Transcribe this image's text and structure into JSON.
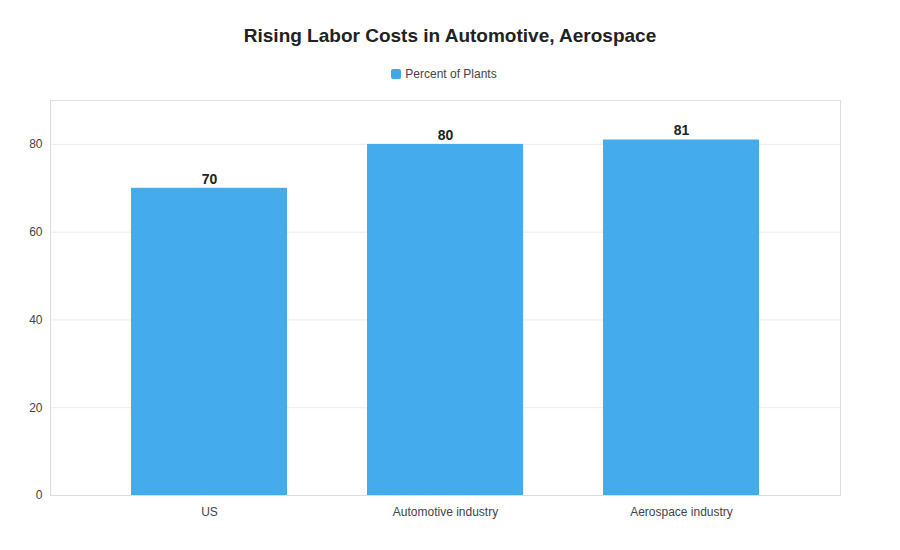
{
  "chart_data": {
    "type": "bar",
    "title": "Rising Labor Costs in Automotive, Aerospace",
    "categories": [
      "US",
      "Automotive industry",
      "Aerospace industry"
    ],
    "series": [
      {
        "name": "Percent of Plants",
        "color": "#3ea8ec",
        "values": [
          70,
          80,
          81
        ]
      }
    ],
    "ylim": [
      0,
      90
    ],
    "yticks": [
      0,
      20,
      40,
      60,
      80
    ],
    "grid": true,
    "legend": "top",
    "data_labels": true
  }
}
